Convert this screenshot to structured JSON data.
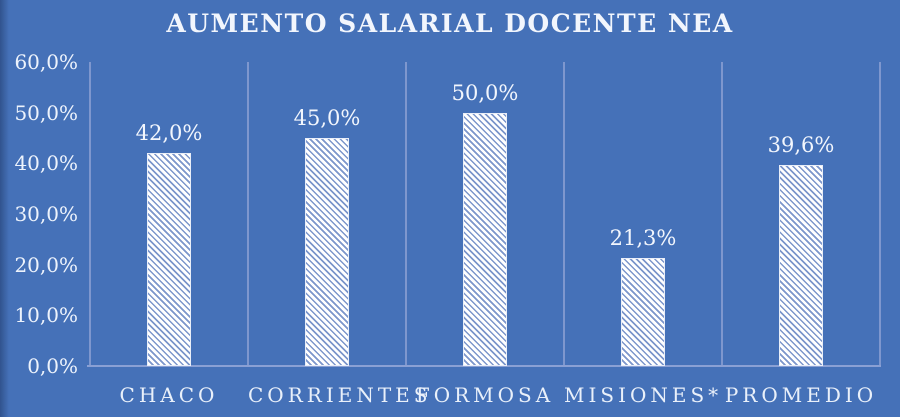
{
  "chart_data": {
    "type": "bar",
    "title": "AUMENTO SALARIAL DOCENTE NEA",
    "categories": [
      "CHACO",
      "CORRIENTES",
      "FORMOSA",
      "MISIONES*",
      "PROMEDIO"
    ],
    "values": [
      42.0,
      45.0,
      50.0,
      21.3,
      39.6
    ],
    "value_labels": [
      "42,0%",
      "45,0%",
      "50,0%",
      "21,3%",
      "39,6%"
    ],
    "xlabel": "",
    "ylabel": "",
    "ylim": [
      0,
      60
    ],
    "y_tick_step": 10,
    "y_tick_labels_top_to_bottom": [
      "60,0%",
      "50,0%",
      "40,0%",
      "30,0%",
      "20,0%",
      "10,0%",
      "0,0%"
    ],
    "grid": "vertical category separators only, no horizontal gridlines",
    "legend": "none",
    "bar_style": "white bars with diagonal hatch stripes",
    "number_format": "decimal comma, percent",
    "colors": {
      "background": "#4571B8",
      "gridline": "#7E97CE",
      "axis_line": "#8AA0D4",
      "text": "#F2F6FD",
      "bar_base": "#FFFFFF",
      "bar_stripe": "#7C96CB",
      "bar_border": "#E9EEF8"
    }
  }
}
